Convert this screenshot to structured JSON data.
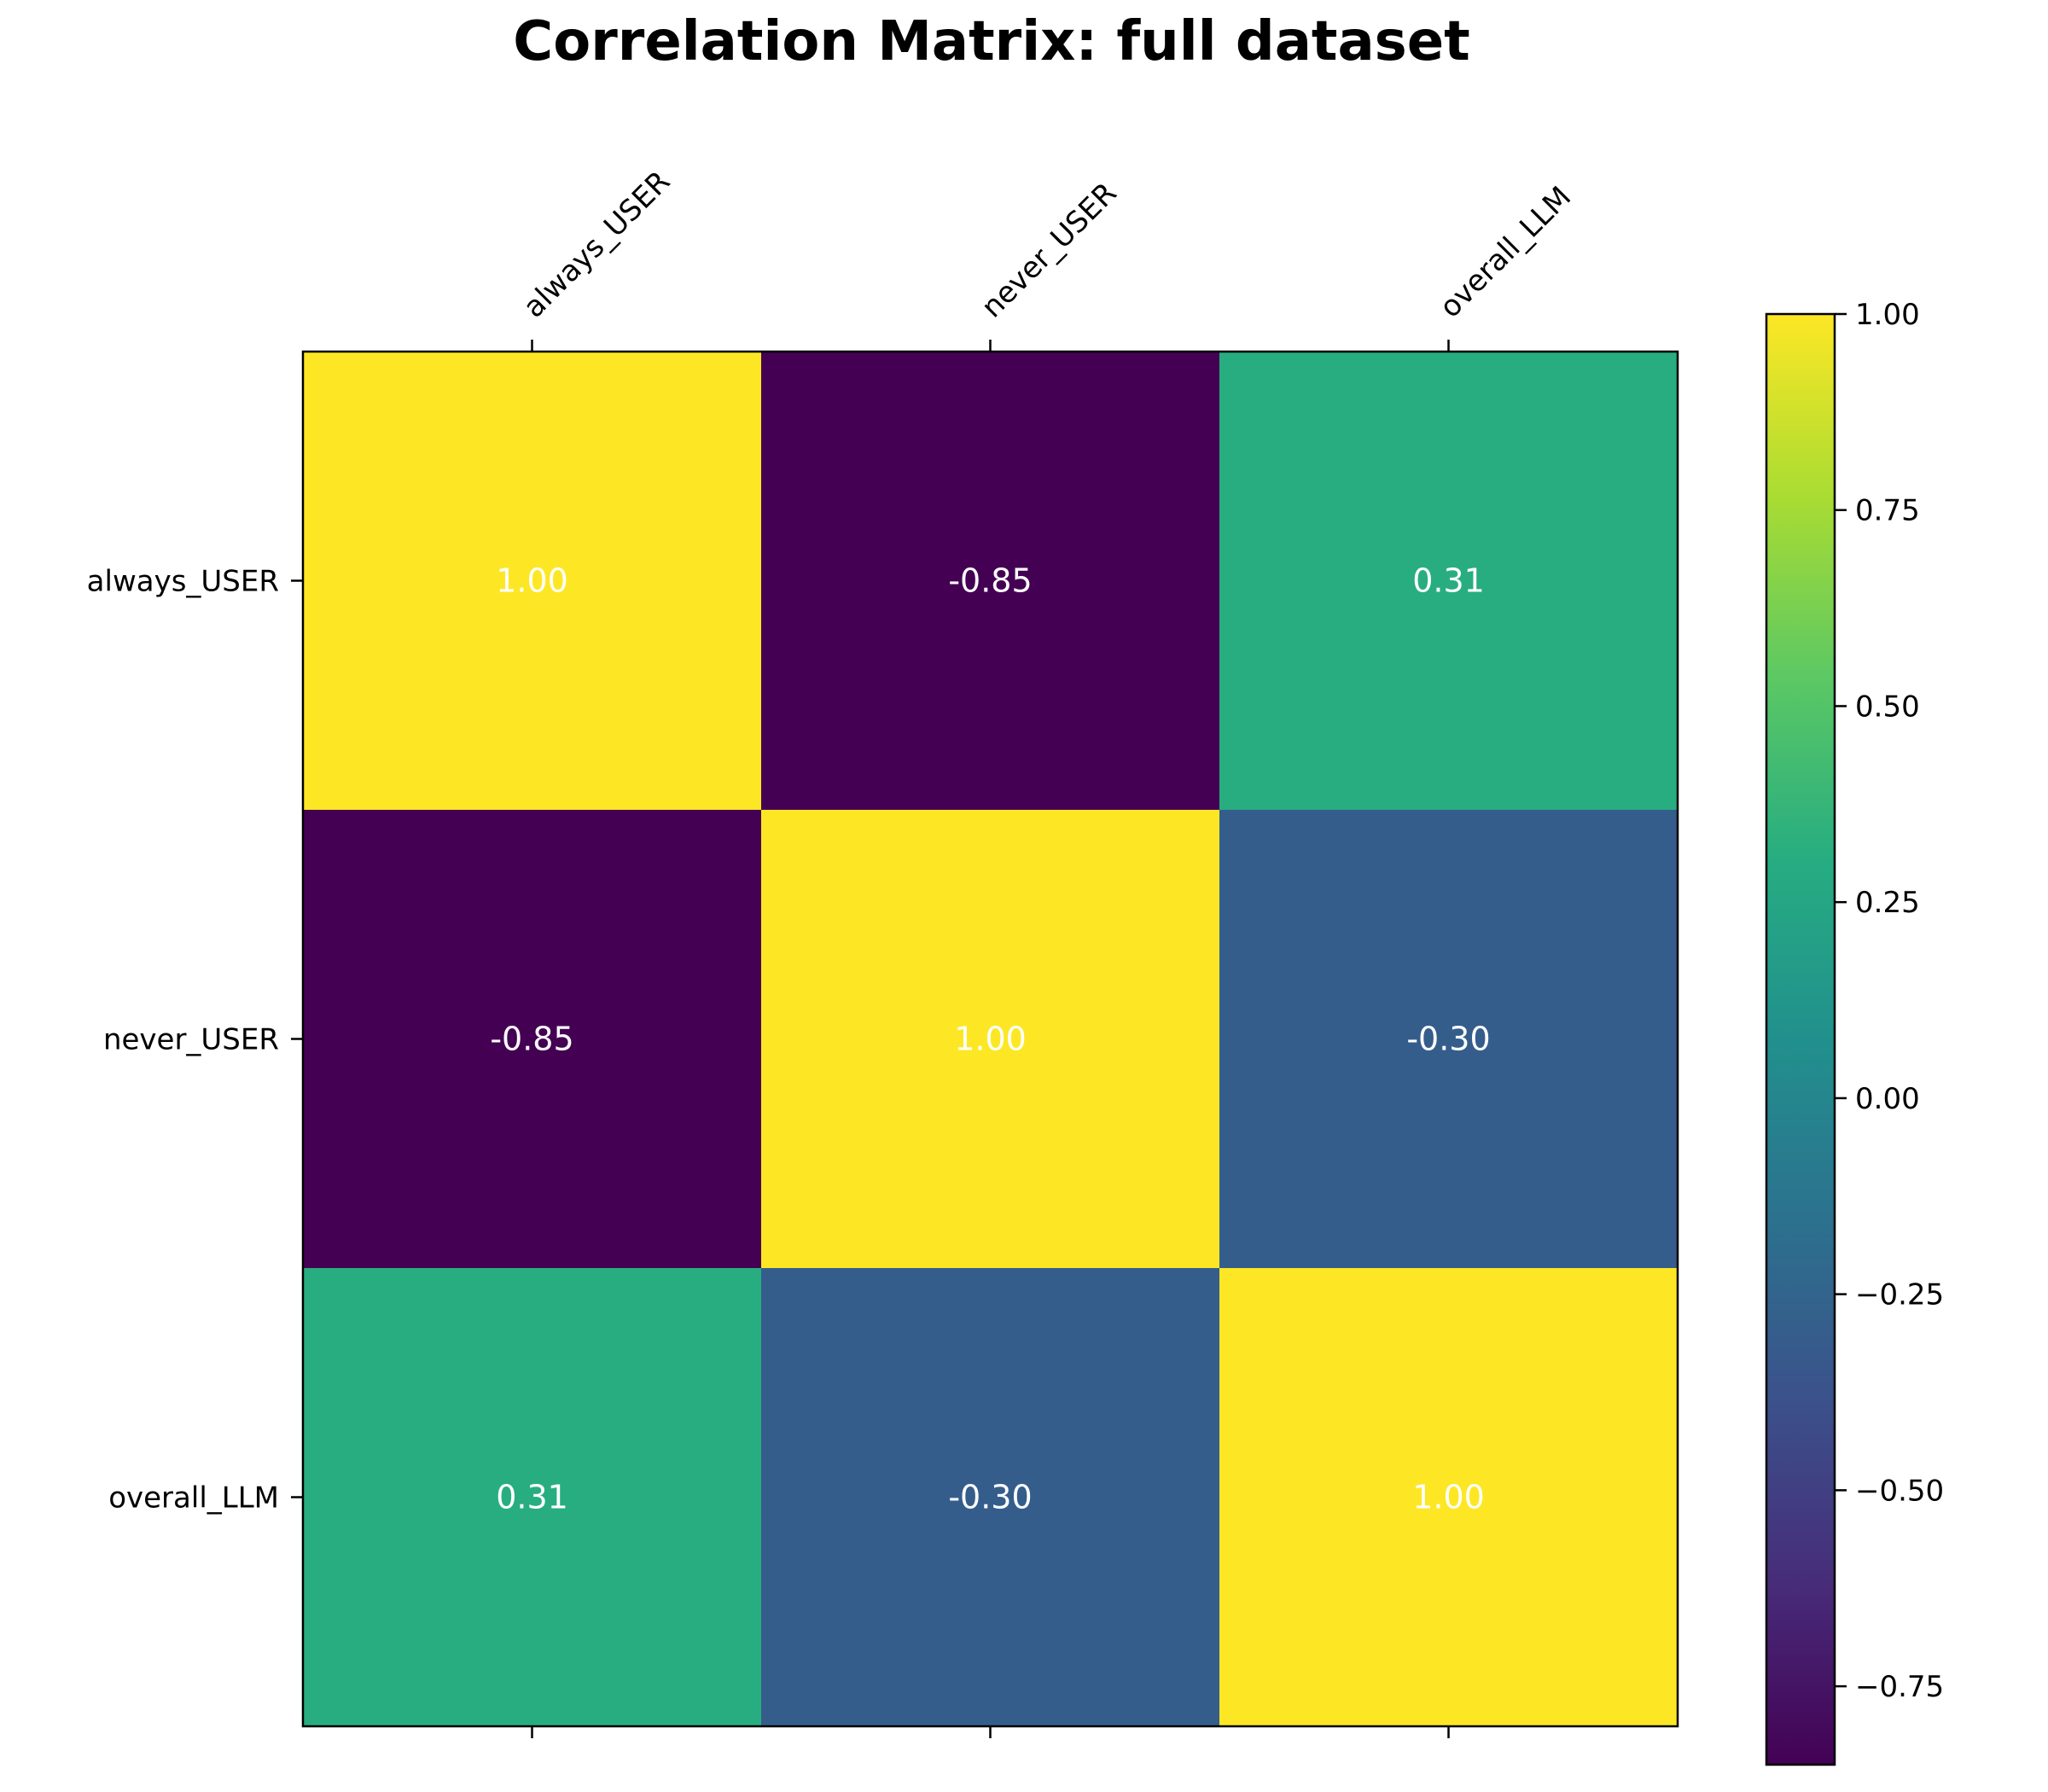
{
  "chart_data": {
    "type": "heatmap",
    "title": "Correlation Matrix: full dataset",
    "x_labels": [
      "always_USER",
      "never_USER",
      "overall_LLM"
    ],
    "y_labels": [
      "always_USER",
      "never_USER",
      "overall_LLM"
    ],
    "values": [
      [
        1.0,
        -0.85,
        0.31
      ],
      [
        -0.85,
        1.0,
        -0.3
      ],
      [
        0.31,
        -0.3,
        1.0
      ]
    ],
    "cell_labels": [
      [
        "1.00",
        "-0.85",
        "0.31"
      ],
      [
        "-0.85",
        "1.00",
        "-0.30"
      ],
      [
        "0.31",
        "-0.30",
        "1.00"
      ]
    ],
    "x_tick_position": "top",
    "colormap": "viridis",
    "colorbar": {
      "range": [
        -0.85,
        1.0
      ],
      "ticks": [
        1.0,
        0.75,
        0.5,
        0.25,
        0.0,
        -0.25,
        -0.5,
        -0.75
      ],
      "tick_labels": [
        "1.00",
        "0.75",
        "0.50",
        "0.25",
        "0.00",
        "−0.25",
        "−0.50",
        "−0.75"
      ]
    }
  }
}
